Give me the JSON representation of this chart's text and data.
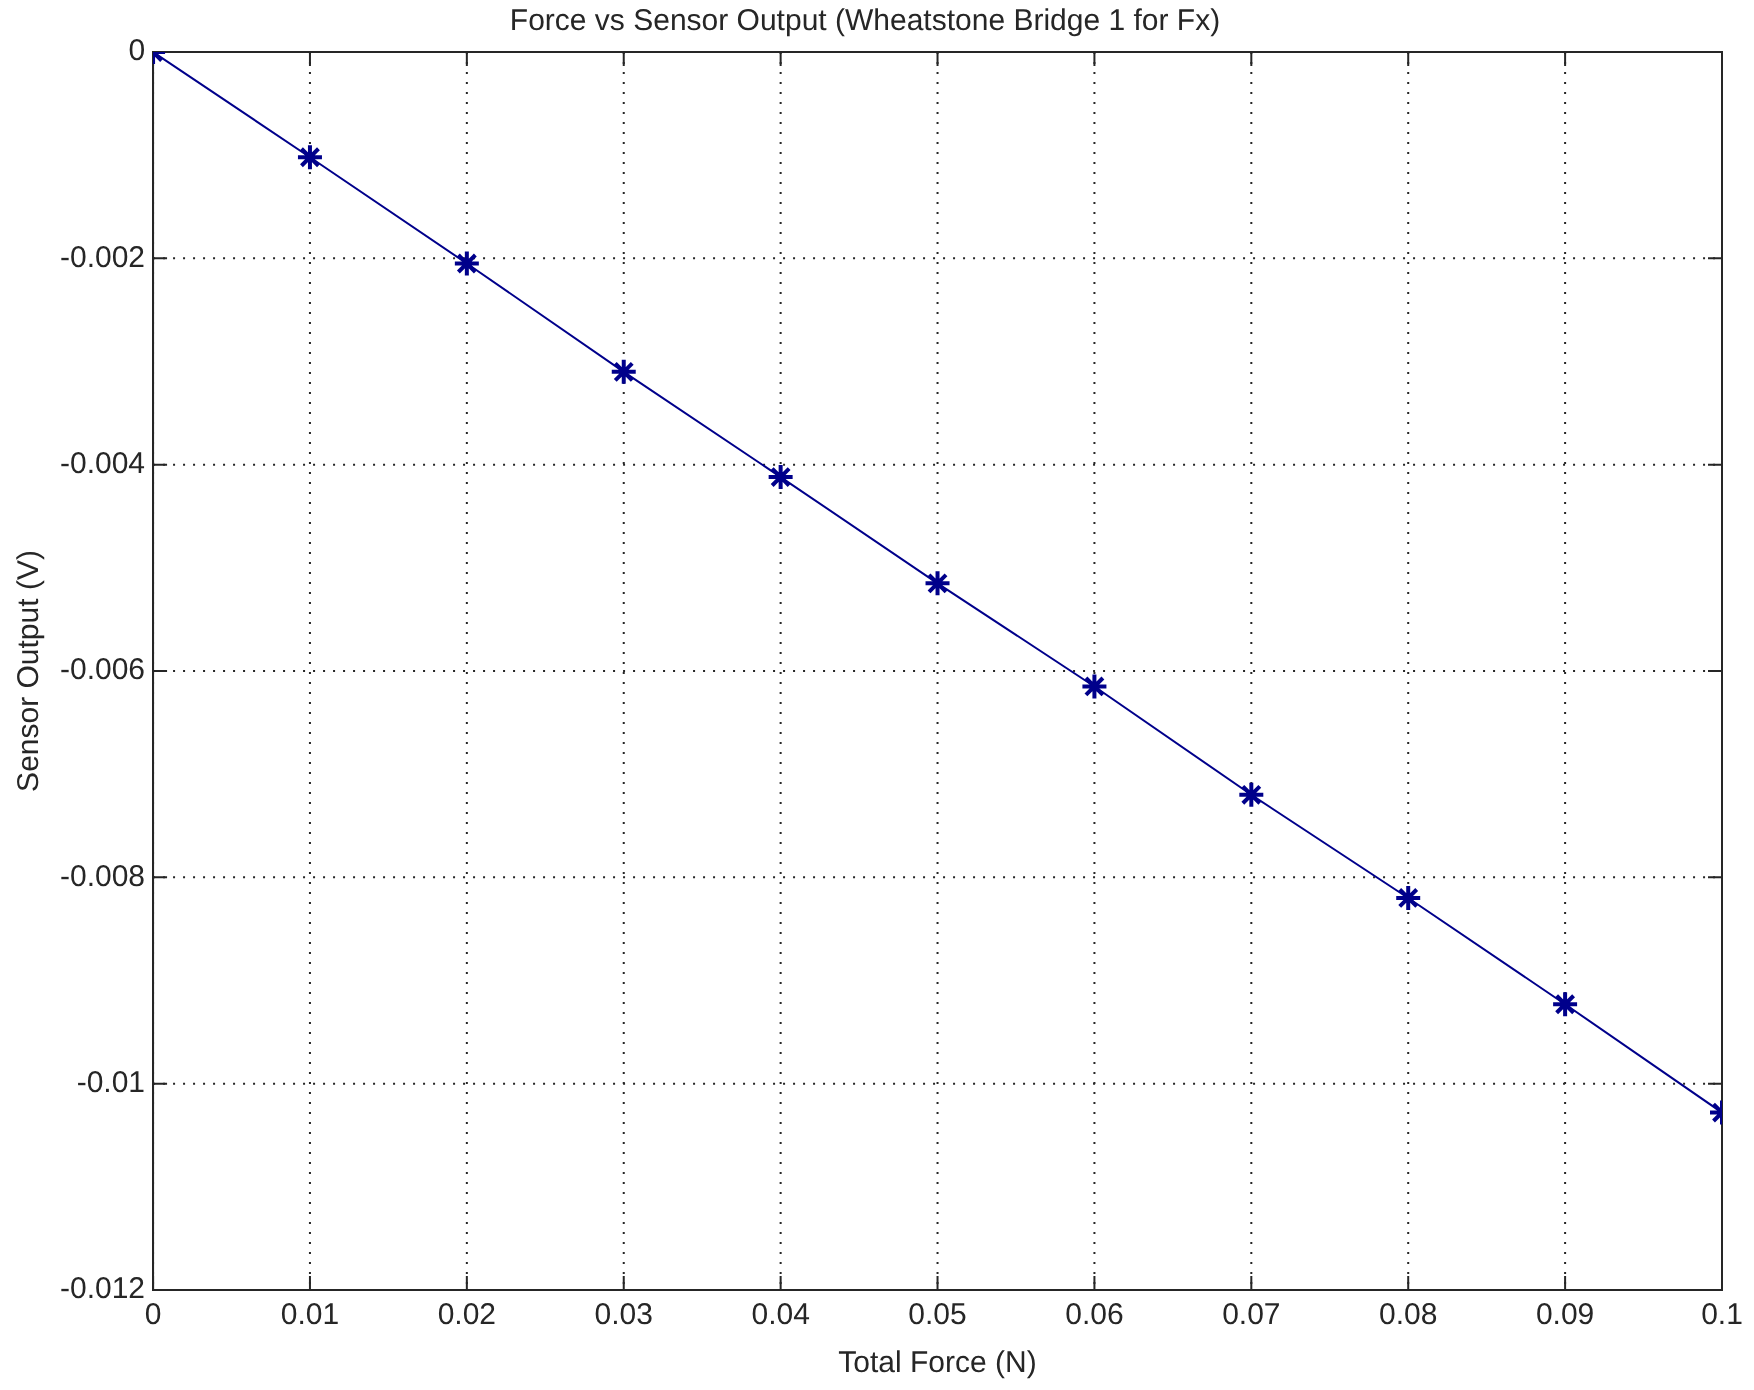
{
  "chart_data": {
    "type": "line",
    "title": "Force vs Sensor Output (Wheatstone Bridge 1 for Fx)",
    "xlabel": "Total Force (N)",
    "ylabel": "Sensor Output (V)",
    "x": [
      0,
      0.01,
      0.02,
      0.03,
      0.04,
      0.05,
      0.06,
      0.07,
      0.08,
      0.09,
      0.1
    ],
    "series": [
      {
        "color": "#00008b",
        "values": [
          0,
          -0.00102,
          -0.00205,
          -0.0031,
          -0.00412,
          -0.00515,
          -0.00615,
          -0.0072,
          -0.0082,
          -0.00923,
          -0.01028
        ]
      }
    ],
    "xlim": [
      0,
      0.1
    ],
    "xticks": [
      0,
      0.01,
      0.02,
      0.03,
      0.04,
      0.05,
      0.06,
      0.07,
      0.08,
      0.09,
      0.1
    ],
    "ylim": [
      -0.012,
      0
    ],
    "yticks": [
      -0.012,
      -0.01,
      -0.008,
      -0.006,
      -0.004,
      -0.002,
      0
    ],
    "grid": true,
    "marker": "cross",
    "line_style": "solid",
    "legend": false
  }
}
